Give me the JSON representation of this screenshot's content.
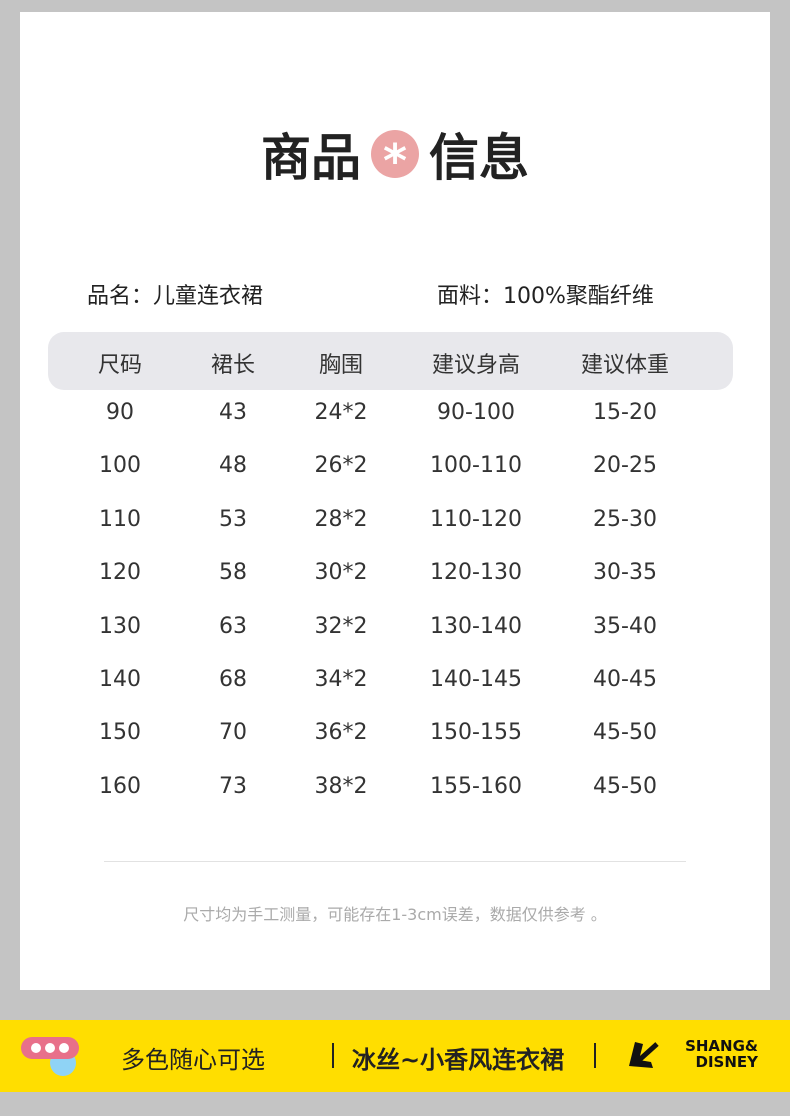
{
  "title": {
    "left": "商品",
    "right": "信息",
    "icon": "asterisk-circle-icon"
  },
  "info": {
    "name": "品名：儿童连衣裙",
    "fabric": "面料：100%聚酯纤维"
  },
  "table": {
    "headers": [
      "尺码",
      "裙长",
      "胸围",
      "建议身高",
      "建议体重"
    ],
    "rows": [
      [
        "90",
        "43",
        "24*2",
        "90-100",
        "15-20"
      ],
      [
        "100",
        "48",
        "26*2",
        "100-110",
        "20-25"
      ],
      [
        "110",
        "53",
        "28*2",
        "110-120",
        "25-30"
      ],
      [
        "120",
        "58",
        "30*2",
        "120-130",
        "30-35"
      ],
      [
        "130",
        "63",
        "32*2",
        "130-140",
        "35-40"
      ],
      [
        "140",
        "68",
        "34*2",
        "140-145",
        "40-45"
      ],
      [
        "150",
        "70",
        "36*2",
        "150-155",
        "45-50"
      ],
      [
        "160",
        "73",
        "38*2",
        "155-160",
        "45-50"
      ]
    ]
  },
  "note": "尺寸均为手工测量，可能存在1-3cm误差，数据仅供参考 。",
  "footer": {
    "left": "多色随心可选",
    "middle": "冰丝~小香风连衣裙",
    "brand_line1": "SHANG&",
    "brand_line2": "DISNEY",
    "colors": {
      "bar": "#ffde00",
      "accent": "#eba4a4"
    }
  }
}
